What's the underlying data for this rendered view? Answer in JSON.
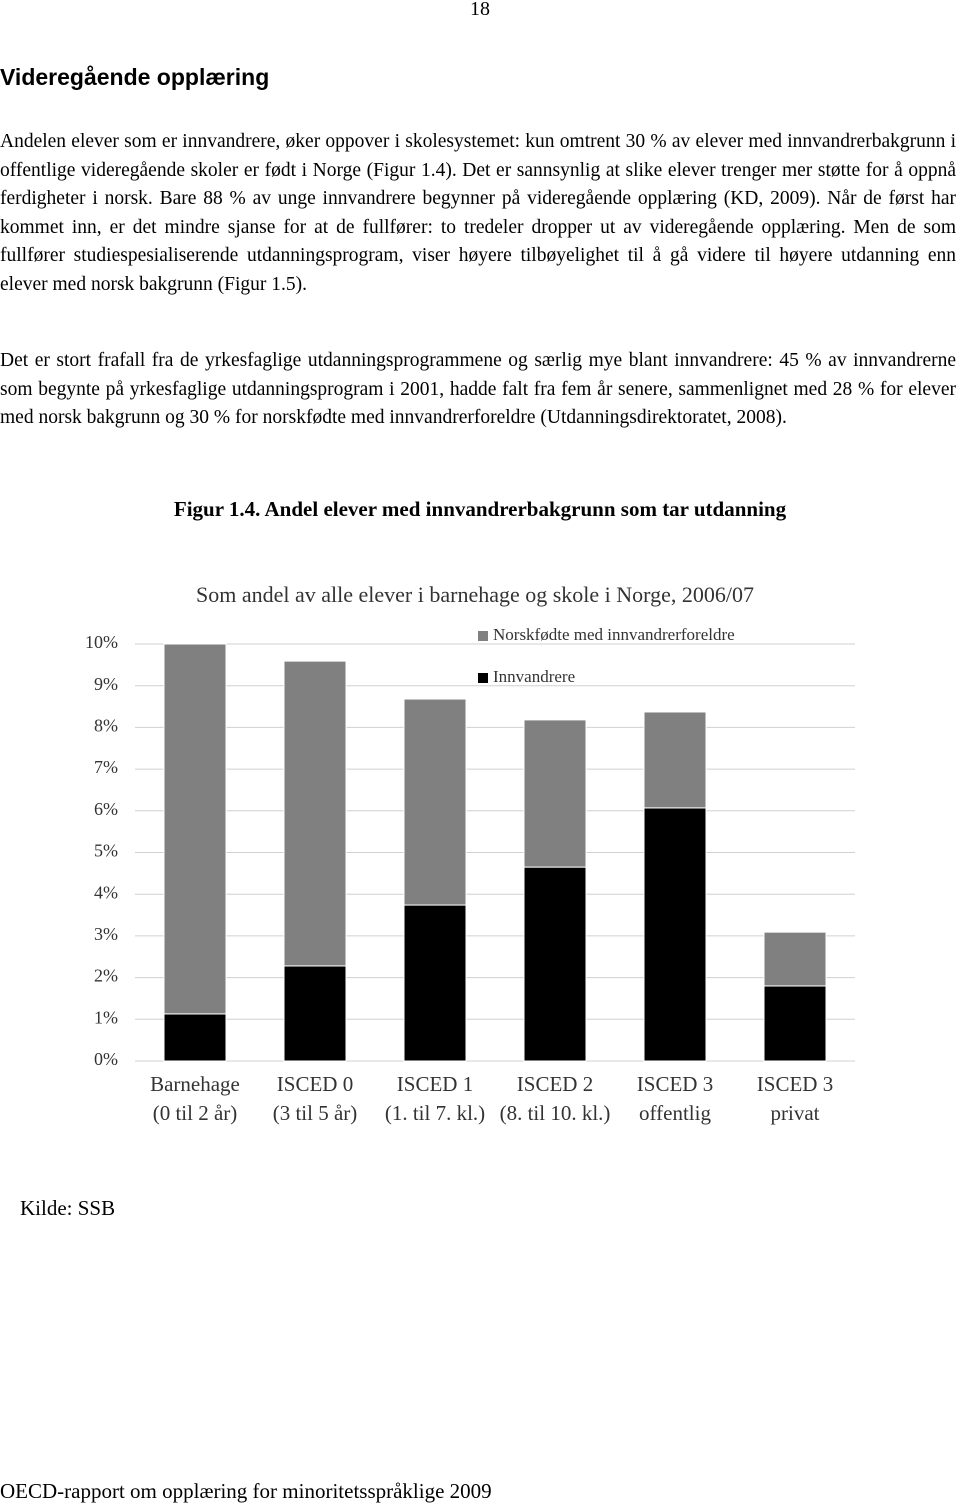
{
  "page_number": "18",
  "heading": "Videregående opplæring",
  "paragraphs": [
    "Andelen elever som er innvandrere, øker oppover i skolesystemet: kun omtrent 30 % av elever med innvandrerbakgrunn i offentlige videregående skoler er født i Norge (Figur 1.4). Det er sannsynlig at slike elever trenger mer støtte for å oppnå ferdigheter i norsk. Bare 88 % av unge innvandrere begynner på videregående opplæring (KD, 2009). Når de først har kommet inn, er det mindre sjanse for at de fullfører: to tredeler dropper ut av videregående opplæring. Men de som fullfører studiespesialiserende utdanningsprogram, viser høyere tilbøyelighet til å gå videre til høyere utdanning enn elever med norsk bakgrunn (Figur 1.5).",
    "Det er stort frafall fra de yrkesfaglige utdanningsprogrammene og særlig mye blant innvandrere: 45 % av innvandrerne som begynte på yrkesfaglige utdanningsprogram i 2001, hadde falt fra fem år senere, sammenlignet med 28 % for elever med norsk bakgrunn og 30 % for norskfødte med innvandrerforeldre (Utdanningsdirektoratet, 2008)."
  ],
  "figure_caption": "Figur 1.4. Andel elever med innvandrerbakgrunn som tar utdanning",
  "chart_data": {
    "type": "stacked-bar",
    "title": "Som andel av alle elever i barnehage og skole i Norge, 2006/07",
    "categories": [
      [
        "Barnehage",
        "(0 til 2 år)"
      ],
      [
        "ISCED 0",
        "(3 til 5 år)"
      ],
      [
        "ISCED 1",
        "(1. til 7. kl.)"
      ],
      [
        "ISCED 2",
        "(8. til 10. kl.)"
      ],
      [
        "ISCED 3",
        "offentlig"
      ],
      [
        "ISCED 3",
        "privat"
      ]
    ],
    "series": [
      {
        "name": "Norskfødte med innvandrerforeldre",
        "color": "#808080",
        "values": [
          8.87,
          7.31,
          4.94,
          3.53,
          2.3,
          1.29
        ]
      },
      {
        "name": "Innvandrere",
        "color": "#000000",
        "values": [
          1.13,
          2.28,
          3.74,
          4.65,
          6.07,
          1.8
        ]
      }
    ],
    "ylim": [
      0,
      10
    ],
    "yticks": [
      {
        "value": 0,
        "label": "0%"
      },
      {
        "value": 1,
        "label": "1%"
      },
      {
        "value": 2,
        "label": "2%"
      },
      {
        "value": 3,
        "label": "3%"
      },
      {
        "value": 4,
        "label": "4%"
      },
      {
        "value": 5,
        "label": "5%"
      },
      {
        "value": 6,
        "label": "6%"
      },
      {
        "value": 7,
        "label": "7%"
      },
      {
        "value": 8,
        "label": "8%"
      },
      {
        "value": 9,
        "label": "9%"
      },
      {
        "value": 10,
        "label": "10%"
      }
    ],
    "grid": true
  },
  "source": "Kilde: SSB",
  "footer": "OECD-rapport om opplæring for minoritetsspråklige 2009"
}
